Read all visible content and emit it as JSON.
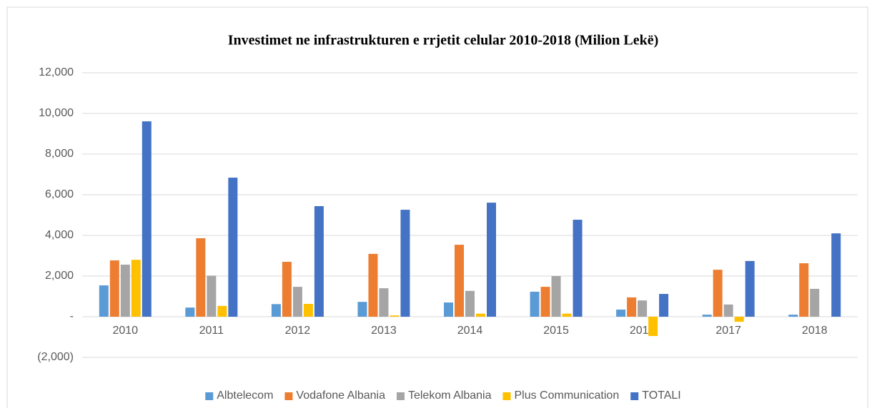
{
  "chart_data": {
    "type": "bar",
    "title": "Investimet ne infrastrukturen e rrjetit celular 2010-2018 (Milion Lekë)",
    "categories": [
      "2010",
      "2011",
      "2012",
      "2013",
      "2014",
      "2015",
      "2016",
      "2017",
      "2018"
    ],
    "series": [
      {
        "name": "Albtelecom",
        "color": "#5b9bd5",
        "values": [
          1540,
          450,
          620,
          730,
          700,
          1230,
          350,
          100,
          100
        ]
      },
      {
        "name": "Vodafone Albania",
        "color": "#ed7d31",
        "values": [
          2770,
          3860,
          2700,
          3090,
          3540,
          1470,
          950,
          2310,
          2630
        ]
      },
      {
        "name": "Telekom Albania",
        "color": "#a5a5a5",
        "values": [
          2560,
          2020,
          1470,
          1400,
          1270,
          2000,
          800,
          600,
          1370
        ]
      },
      {
        "name": "Plus Communication",
        "color": "#ffc000",
        "values": [
          2800,
          530,
          630,
          60,
          150,
          150,
          -950,
          -250,
          0
        ]
      },
      {
        "name": "TOTALI",
        "color": "#4472c4",
        "values": [
          9610,
          6840,
          5440,
          5260,
          5610,
          4770,
          1120,
          2740,
          4100
        ]
      }
    ],
    "ylim": [
      -2000,
      12000
    ],
    "yticks": [
      {
        "value": -2000,
        "label": "(2,000)"
      },
      {
        "value": 0,
        "label": "-"
      },
      {
        "value": 2000,
        "label": "2,000"
      },
      {
        "value": 4000,
        "label": "4,000"
      },
      {
        "value": 6000,
        "label": "6,000"
      },
      {
        "value": 8000,
        "label": "8,000"
      },
      {
        "value": 10000,
        "label": "10,000"
      },
      {
        "value": 12000,
        "label": "12,000"
      }
    ],
    "grid": true,
    "legend": "bottom"
  }
}
